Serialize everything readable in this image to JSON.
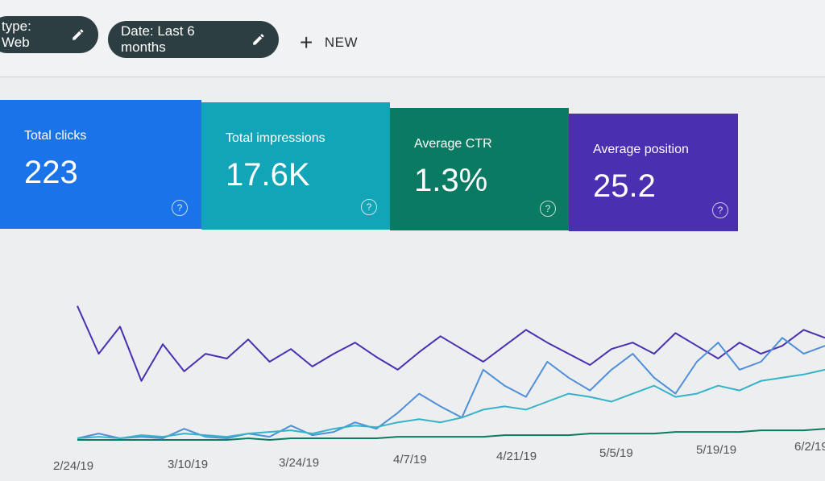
{
  "filters": {
    "type_chip": "type: Web",
    "date_chip": "Date: Last 6 months",
    "new_label": "NEW"
  },
  "metrics": [
    {
      "label": "Total clicks",
      "value": "223",
      "color": "#1a73e8"
    },
    {
      "label": "Total impressions",
      "value": "17.6K",
      "color": "#12a4b7"
    },
    {
      "label": "Average CTR",
      "value": "1.3%",
      "color": "#0b7a62"
    },
    {
      "label": "Average position",
      "value": "25.2",
      "color": "#4a2fb0"
    }
  ],
  "chart_data": {
    "type": "line",
    "x_tick_labels": [
      "2/24/19",
      "3/10/19",
      "3/24/19",
      "4/7/19",
      "4/21/19",
      "5/5/19",
      "5/19/19",
      "6/2/19"
    ],
    "grid": false,
    "series": [
      {
        "color": "#4a2fb0",
        "values": [
          0.85,
          0.55,
          0.72,
          0.38,
          0.61,
          0.44,
          0.55,
          0.52,
          0.64,
          0.5,
          0.58,
          0.47,
          0.55,
          0.62,
          0.53,
          0.45,
          0.56,
          0.66,
          0.58,
          0.5,
          0.6,
          0.7,
          0.62,
          0.55,
          0.48,
          0.58,
          0.62,
          0.55,
          0.68,
          0.6,
          0.52,
          0.62,
          0.55,
          0.6,
          0.7,
          0.65
        ]
      },
      {
        "color": "#4f8fd8",
        "values": [
          0.02,
          0.05,
          0.02,
          0.03,
          0.02,
          0.08,
          0.03,
          0.02,
          0.05,
          0.03,
          0.1,
          0.04,
          0.06,
          0.12,
          0.08,
          0.18,
          0.3,
          0.22,
          0.15,
          0.45,
          0.35,
          0.28,
          0.5,
          0.4,
          0.32,
          0.45,
          0.55,
          0.4,
          0.3,
          0.5,
          0.62,
          0.45,
          0.5,
          0.65,
          0.55,
          0.6
        ]
      },
      {
        "color": "#35b3c8",
        "values": [
          0.02,
          0.03,
          0.02,
          0.04,
          0.03,
          0.05,
          0.04,
          0.03,
          0.05,
          0.06,
          0.07,
          0.05,
          0.08,
          0.1,
          0.09,
          0.12,
          0.14,
          0.12,
          0.15,
          0.2,
          0.22,
          0.2,
          0.25,
          0.3,
          0.28,
          0.25,
          0.3,
          0.35,
          0.28,
          0.3,
          0.35,
          0.32,
          0.38,
          0.4,
          0.42,
          0.45
        ]
      },
      {
        "color": "#0b7a62",
        "values": [
          0.01,
          0.01,
          0.01,
          0.01,
          0.01,
          0.01,
          0.01,
          0.01,
          0.02,
          0.01,
          0.02,
          0.02,
          0.02,
          0.02,
          0.02,
          0.03,
          0.03,
          0.03,
          0.03,
          0.03,
          0.04,
          0.04,
          0.04,
          0.04,
          0.05,
          0.05,
          0.05,
          0.05,
          0.06,
          0.06,
          0.06,
          0.06,
          0.07,
          0.07,
          0.07,
          0.08
        ]
      }
    ]
  },
  "icons": {
    "edit": "pencil-icon",
    "add": "plus-icon",
    "help": "help-icon"
  }
}
